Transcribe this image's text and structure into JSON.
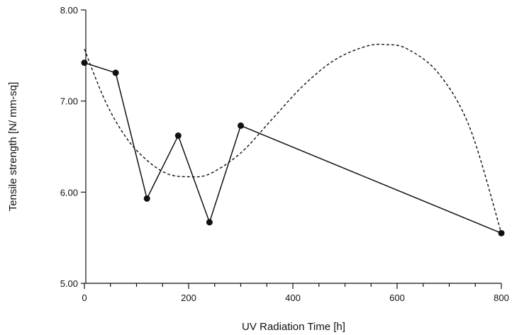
{
  "chart_data": {
    "type": "line",
    "title": "",
    "xlabel": "UV Radiation Time [h]",
    "ylabel": "Tensile strength [N/ mm-sq]",
    "xlim": [
      0,
      800
    ],
    "ylim": [
      5.0,
      8.0
    ],
    "x_ticks": [
      0,
      200,
      400,
      600,
      800
    ],
    "y_ticks": [
      5.0,
      6.0,
      7.0,
      8.0
    ],
    "x_tick_labels": [
      "0",
      "200",
      "400",
      "600",
      "800"
    ],
    "y_tick_labels": [
      "5.00",
      "6.00",
      "7.00",
      "8.00"
    ],
    "grid": false,
    "legend": "none",
    "series": [
      {
        "style": "solid-with-markers",
        "x": [
          0,
          60,
          120,
          180,
          240,
          300,
          800
        ],
        "y": [
          7.42,
          7.31,
          5.93,
          6.62,
          5.67,
          6.73,
          5.55
        ]
      },
      {
        "style": "dashed-fit",
        "x": [
          0,
          40,
          80,
          120,
          160,
          200,
          240,
          300,
          360,
          420,
          480,
          540,
          580,
          620,
          680,
          740,
          800
        ],
        "y": [
          7.57,
          7.0,
          6.6,
          6.35,
          6.2,
          6.17,
          6.2,
          6.43,
          6.8,
          7.17,
          7.45,
          7.6,
          7.62,
          7.57,
          7.3,
          6.7,
          5.55
        ]
      }
    ]
  }
}
